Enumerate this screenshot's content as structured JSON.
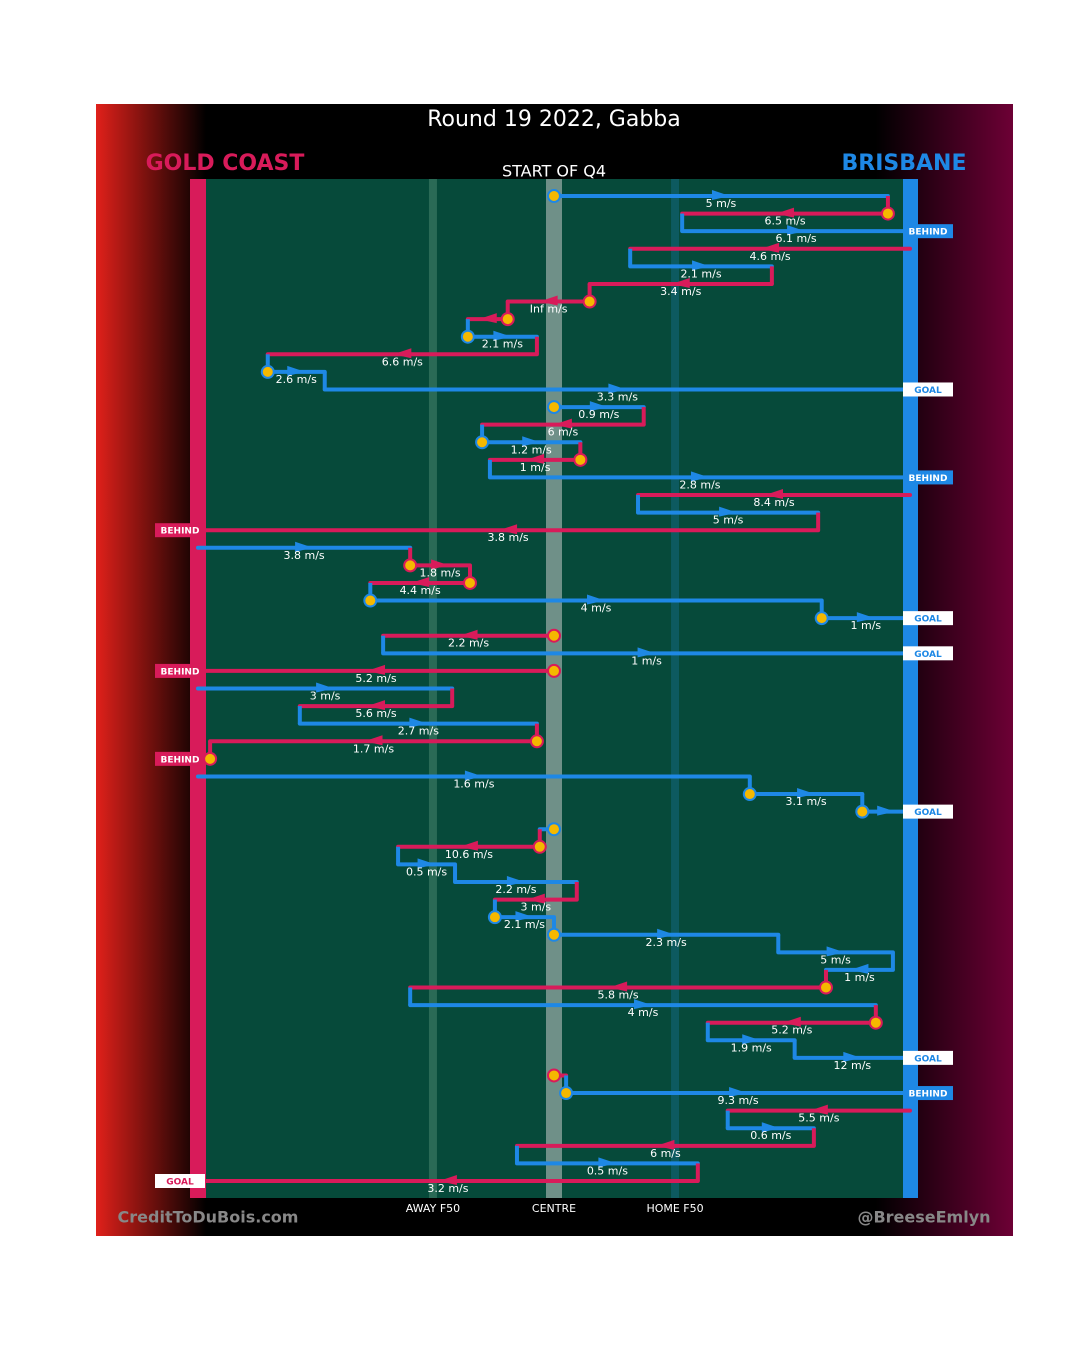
{
  "chart_data": {
    "type": "chain",
    "title": "Round 19 2022, Gabba",
    "subtitle": "START OF Q4",
    "credit_left": "CreditToDuBois.com",
    "credit_right": "@BreeseEmlyn",
    "teams": [
      {
        "name": "GOLD COAST",
        "color": "#d81b5a"
      },
      {
        "name": "BRISBANE",
        "color": "#1e88e5"
      }
    ],
    "xlim": [
      0,
      100
    ],
    "xticks": [
      {
        "value": 33,
        "label": "AWAY F50"
      },
      {
        "value": 50,
        "label": "CENTRE"
      },
      {
        "value": 67,
        "label": "HOME F50"
      }
    ],
    "segments": [
      {
        "team": 1,
        "from": 50,
        "to": 96.9,
        "value": 5,
        "value_label": "5 m/s",
        "marker": true
      },
      {
        "team": 0,
        "from": 96.9,
        "to": 68,
        "value": 6.5,
        "value_label": "6.5 m/s",
        "marker": true
      },
      {
        "team": 1,
        "from": 68,
        "to": 100,
        "value": 6.1,
        "value_label": "6.1 m/s",
        "result": "BEHIND"
      },
      {
        "team": 0,
        "from": 100,
        "to": 60.7,
        "value": 4.6,
        "value_label": "4.6 m/s"
      },
      {
        "team": 1,
        "from": 60.7,
        "to": 80.6,
        "value": 2.1,
        "value_label": "2.1 m/s"
      },
      {
        "team": 0,
        "from": 80.6,
        "to": 55,
        "value": 3.4,
        "value_label": "3.4 m/s"
      },
      {
        "team": 0,
        "from": 55,
        "to": 43.5,
        "value": null,
        "value_label": "Inf m/s",
        "marker": true
      },
      {
        "team": 0,
        "from": 43.5,
        "to": 37.9,
        "marker": true
      },
      {
        "team": 1,
        "from": 37.9,
        "to": 47.6,
        "value": 2.1,
        "value_label": "2.1 m/s",
        "marker": true
      },
      {
        "team": 0,
        "from": 47.6,
        "to": 9.8,
        "value": 6.6,
        "value_label": "6.6 m/s"
      },
      {
        "team": 1,
        "from": 9.8,
        "to": 17.8,
        "value": 2.6,
        "value_label": "2.6 m/s",
        "marker": true
      },
      {
        "team": 1,
        "from": 17.8,
        "to": 100,
        "value": 3.3,
        "value_label": "3.3 m/s",
        "result": "GOAL"
      },
      {
        "team": 1,
        "from": 50,
        "to": 62.6,
        "value": 0.9,
        "value_label": "0.9 m/s",
        "marker": true
      },
      {
        "team": 0,
        "from": 62.6,
        "to": 39.9,
        "value": 6,
        "value_label": "6 m/s"
      },
      {
        "team": 1,
        "from": 39.9,
        "to": 53.7,
        "value": 1.2,
        "value_label": "1.2 m/s",
        "marker": true
      },
      {
        "team": 0,
        "from": 53.7,
        "to": 41,
        "value": 1,
        "value_label": "1 m/s",
        "marker": true
      },
      {
        "team": 1,
        "from": 41,
        "to": 100,
        "value": 2.8,
        "value_label": "2.8 m/s",
        "result": "BEHIND"
      },
      {
        "team": 0,
        "from": 100,
        "to": 61.8,
        "value": 8.4,
        "value_label": "8.4 m/s"
      },
      {
        "team": 1,
        "from": 61.8,
        "to": 87.1,
        "value": 5,
        "value_label": "5 m/s"
      },
      {
        "team": 0,
        "from": 87.1,
        "to": 0,
        "value": 3.8,
        "value_label": "3.8 m/s",
        "result": "BEHIND"
      },
      {
        "team": 1,
        "from": 0,
        "to": 29.8,
        "value": 3.8,
        "value_label": "3.8 m/s"
      },
      {
        "team": 0,
        "from": 29.8,
        "to": 38.2,
        "value": 1.8,
        "value_label": "1.8 m/s",
        "marker": true
      },
      {
        "team": 0,
        "from": 38.2,
        "to": 24.2,
        "value": 4.4,
        "value_label": "4.4 m/s",
        "marker": true
      },
      {
        "team": 1,
        "from": 24.2,
        "to": 87.6,
        "value": 4,
        "value_label": "4 m/s",
        "marker": true
      },
      {
        "team": 1,
        "from": 87.6,
        "to": 100,
        "value": 1,
        "value_label": "1 m/s",
        "marker": true,
        "result": "GOAL"
      },
      {
        "team": 0,
        "from": 50,
        "to": 26,
        "value": 2.2,
        "value_label": "2.2 m/s",
        "marker": true
      },
      {
        "team": 1,
        "from": 26,
        "to": 100,
        "value": 1,
        "value_label": "1 m/s",
        "result": "GOAL"
      },
      {
        "team": 0,
        "from": 50,
        "to": 0,
        "value": 5.2,
        "value_label": "5.2 m/s",
        "marker": true,
        "result": "BEHIND"
      },
      {
        "team": 1,
        "from": 0,
        "to": 35.7,
        "value": 3,
        "value_label": "3 m/s"
      },
      {
        "team": 0,
        "from": 35.7,
        "to": 14.3,
        "value": 5.6,
        "value_label": "5.6 m/s"
      },
      {
        "team": 1,
        "from": 14.3,
        "to": 47.6,
        "value": 2.7,
        "value_label": "2.7 m/s"
      },
      {
        "team": 0,
        "from": 47.6,
        "to": 1.7,
        "value": 1.7,
        "value_label": "1.7 m/s",
        "marker": true
      },
      {
        "team": 0,
        "from": 1.7,
        "to": 0,
        "marker": true,
        "result": "BEHIND"
      },
      {
        "team": 1,
        "from": 0,
        "to": 77.5,
        "value": 1.6,
        "value_label": "1.6 m/s"
      },
      {
        "team": 1,
        "from": 77.5,
        "to": 93.3,
        "value": 3.1,
        "value_label": "3.1 m/s",
        "marker": true
      },
      {
        "team": 1,
        "from": 93.3,
        "to": 100,
        "marker": true,
        "result": "GOAL"
      },
      {
        "team": 1,
        "from": 50,
        "to": 48,
        "marker": true
      },
      {
        "team": 0,
        "from": 48,
        "to": 28.1,
        "value": 10.6,
        "value_label": "10.6 m/s",
        "marker": true
      },
      {
        "team": 1,
        "from": 28.1,
        "to": 36.1,
        "value": 0.5,
        "value_label": "0.5 m/s"
      },
      {
        "team": 1,
        "from": 36.1,
        "to": 53.2,
        "value": 2.2,
        "value_label": "2.2 m/s"
      },
      {
        "team": 0,
        "from": 53.2,
        "to": 41.7,
        "value": 3,
        "value_label": "3 m/s"
      },
      {
        "team": 1,
        "from": 41.7,
        "to": 50,
        "value": 2.1,
        "value_label": "2.1 m/s",
        "marker": true
      },
      {
        "team": 1,
        "from": 50,
        "to": 81.5,
        "value": 2.3,
        "value_label": "2.3 m/s",
        "marker": true
      },
      {
        "team": 1,
        "from": 81.5,
        "to": 97.6,
        "value": 5,
        "value_label": "5 m/s"
      },
      {
        "team": 1,
        "from": 97.6,
        "to": 88.2,
        "value": 1,
        "value_label": "1 m/s"
      },
      {
        "team": 0,
        "from": 88.2,
        "to": 29.8,
        "value": 5.8,
        "value_label": "5.8 m/s",
        "marker": true
      },
      {
        "team": 1,
        "from": 29.8,
        "to": 95.2,
        "value": 4,
        "value_label": "4 m/s"
      },
      {
        "team": 0,
        "from": 95.2,
        "to": 71.6,
        "value": 5.2,
        "value_label": "5.2 m/s",
        "marker": true
      },
      {
        "team": 1,
        "from": 71.6,
        "to": 83.8,
        "value": 1.9,
        "value_label": "1.9 m/s"
      },
      {
        "team": 1,
        "from": 83.8,
        "to": 100,
        "value": 12,
        "value_label": "12 m/s",
        "result": "GOAL"
      },
      {
        "team": 0,
        "from": 50,
        "to": 51.7,
        "marker": true
      },
      {
        "team": 1,
        "from": 51.7,
        "to": 100,
        "value": 9.3,
        "value_label": "9.3 m/s",
        "marker": true,
        "result": "BEHIND"
      },
      {
        "team": 0,
        "from": 100,
        "to": 74.4,
        "value": 5.5,
        "value_label": "5.5 m/s"
      },
      {
        "team": 1,
        "from": 74.4,
        "to": 86.5,
        "value": 0.6,
        "value_label": "0.6 m/s"
      },
      {
        "team": 0,
        "from": 86.5,
        "to": 44.8,
        "value": 6,
        "value_label": "6 m/s"
      },
      {
        "team": 1,
        "from": 44.8,
        "to": 70.2,
        "value": 0.5,
        "value_label": "0.5 m/s"
      },
      {
        "team": 0,
        "from": 70.2,
        "to": 0,
        "value": 3.2,
        "value_label": "3.2 m/s",
        "result": "GOAL"
      }
    ]
  }
}
